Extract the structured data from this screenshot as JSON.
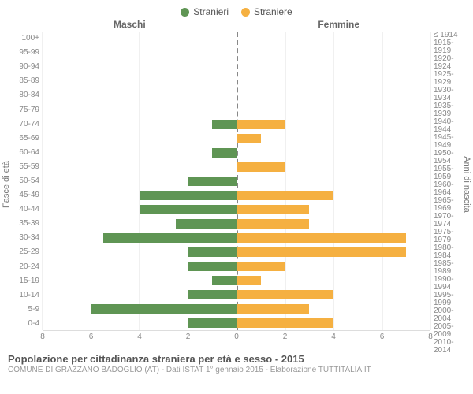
{
  "legend": {
    "male_label": "Stranieri",
    "female_label": "Straniere",
    "male_color": "#5f9554",
    "female_color": "#f5b041"
  },
  "chart": {
    "type": "population-pyramid",
    "male_title": "Maschi",
    "female_title": "Femmine",
    "left_axis_title": "Fasce di età",
    "right_axis_title": "Anni di nascita",
    "xmax": 8,
    "xticks": [
      8,
      6,
      4,
      2,
      0,
      2,
      4,
      6,
      8
    ],
    "grid_color": "#f0f0f0",
    "centerline_color": "#888888",
    "background_color": "#ffffff",
    "bar_colors": {
      "male": "#5f9554",
      "female": "#f5b041"
    },
    "rows": [
      {
        "age": "100+",
        "birth": "≤ 1914",
        "m": 0,
        "f": 0
      },
      {
        "age": "95-99",
        "birth": "1915-1919",
        "m": 0,
        "f": 0
      },
      {
        "age": "90-94",
        "birth": "1920-1924",
        "m": 0,
        "f": 0
      },
      {
        "age": "85-89",
        "birth": "1925-1929",
        "m": 0,
        "f": 0
      },
      {
        "age": "80-84",
        "birth": "1930-1934",
        "m": 0,
        "f": 0
      },
      {
        "age": "75-79",
        "birth": "1935-1939",
        "m": 0,
        "f": 0
      },
      {
        "age": "70-74",
        "birth": "1940-1944",
        "m": 1,
        "f": 2
      },
      {
        "age": "65-69",
        "birth": "1945-1949",
        "m": 0,
        "f": 1
      },
      {
        "age": "60-64",
        "birth": "1950-1954",
        "m": 1,
        "f": 0
      },
      {
        "age": "55-59",
        "birth": "1955-1959",
        "m": 0,
        "f": 2
      },
      {
        "age": "50-54",
        "birth": "1960-1964",
        "m": 2,
        "f": 0
      },
      {
        "age": "45-49",
        "birth": "1965-1969",
        "m": 4,
        "f": 4
      },
      {
        "age": "40-44",
        "birth": "1970-1974",
        "m": 4,
        "f": 3
      },
      {
        "age": "35-39",
        "birth": "1975-1979",
        "m": 2.5,
        "f": 3
      },
      {
        "age": "30-34",
        "birth": "1980-1984",
        "m": 5.5,
        "f": 7
      },
      {
        "age": "25-29",
        "birth": "1985-1989",
        "m": 2,
        "f": 7
      },
      {
        "age": "20-24",
        "birth": "1990-1994",
        "m": 2,
        "f": 2
      },
      {
        "age": "15-19",
        "birth": "1995-1999",
        "m": 1,
        "f": 1
      },
      {
        "age": "10-14",
        "birth": "2000-2004",
        "m": 2,
        "f": 4
      },
      {
        "age": "5-9",
        "birth": "2005-2009",
        "m": 6,
        "f": 3
      },
      {
        "age": "0-4",
        "birth": "2010-2014",
        "m": 2,
        "f": 4
      }
    ]
  },
  "footer": {
    "title": "Popolazione per cittadinanza straniera per età e sesso - 2015",
    "subtitle": "COMUNE DI GRAZZANO BADOGLIO (AT) - Dati ISTAT 1° gennaio 2015 - Elaborazione TUTTITALIA.IT"
  }
}
